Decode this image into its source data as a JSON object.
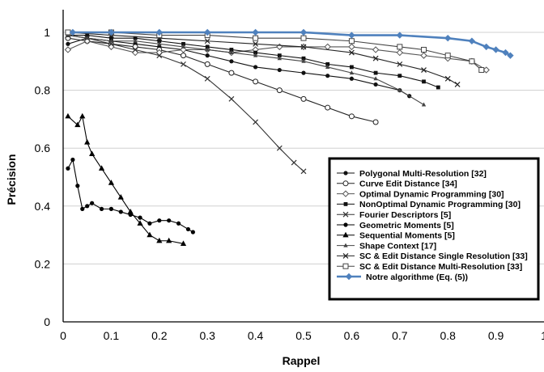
{
  "chart_data": {
    "type": "line",
    "xlabel": "Rappel",
    "ylabel": "Précision",
    "xlim": [
      0,
      1
    ],
    "ylim": [
      0,
      1
    ],
    "x_ticks": [
      0,
      0.1,
      0.2,
      0.3,
      0.4,
      0.5,
      0.6,
      0.7,
      0.8,
      0.9,
      1
    ],
    "x_tick_labels": [
      "0",
      "0.1",
      "0.2",
      "0.3",
      "0.4",
      "0.5",
      "0.6",
      "0.7",
      "0.8",
      "0.9",
      "1"
    ],
    "y_ticks": [
      0,
      0.2,
      0.4,
      0.6,
      0.8,
      1
    ],
    "y_tick_labels": [
      "0",
      "0.2",
      "0.4",
      "0.6",
      "0.8",
      "1"
    ],
    "grid": "horizontal",
    "legend_position": "lower-right",
    "series": [
      {
        "name": "Polygonal Multi-Resolution [32]",
        "marker": "dot",
        "color": "#111111",
        "x": [
          0.01,
          0.05,
          0.1,
          0.15,
          0.2,
          0.25,
          0.3,
          0.35,
          0.4,
          0.45,
          0.5,
          0.55,
          0.6,
          0.65,
          0.7,
          0.72
        ],
        "y": [
          0.96,
          0.98,
          0.97,
          0.96,
          0.95,
          0.94,
          0.92,
          0.9,
          0.88,
          0.87,
          0.86,
          0.85,
          0.84,
          0.82,
          0.8,
          0.78
        ]
      },
      {
        "name": "Curve Edit Distance [34]",
        "marker": "open-circle",
        "color": "#222222",
        "x": [
          0.01,
          0.05,
          0.1,
          0.15,
          0.2,
          0.25,
          0.3,
          0.35,
          0.4,
          0.45,
          0.5,
          0.55,
          0.6,
          0.65
        ],
        "y": [
          0.98,
          0.97,
          0.96,
          0.95,
          0.94,
          0.92,
          0.89,
          0.86,
          0.83,
          0.8,
          0.77,
          0.74,
          0.71,
          0.69
        ]
      },
      {
        "name": "Optimal Dynamic Programming [30]",
        "marker": "open-diamond",
        "color": "#555555",
        "x": [
          0.01,
          0.05,
          0.1,
          0.15,
          0.2,
          0.25,
          0.3,
          0.35,
          0.4,
          0.45,
          0.5,
          0.55,
          0.6,
          0.65,
          0.7,
          0.75,
          0.8,
          0.85,
          0.88
        ],
        "y": [
          0.94,
          0.97,
          0.95,
          0.93,
          0.93,
          0.94,
          0.94,
          0.93,
          0.94,
          0.95,
          0.95,
          0.95,
          0.95,
          0.94,
          0.93,
          0.92,
          0.91,
          0.9,
          0.87
        ]
      },
      {
        "name": "NonOptimal Dynamic Programming [30]",
        "marker": "square",
        "color": "#111111",
        "x": [
          0.01,
          0.05,
          0.1,
          0.15,
          0.2,
          0.25,
          0.3,
          0.35,
          0.4,
          0.45,
          0.5,
          0.55,
          0.6,
          0.65,
          0.7,
          0.75,
          0.78
        ],
        "y": [
          0.99,
          0.99,
          0.98,
          0.98,
          0.97,
          0.96,
          0.95,
          0.94,
          0.93,
          0.92,
          0.91,
          0.89,
          0.88,
          0.86,
          0.85,
          0.83,
          0.81
        ]
      },
      {
        "name": "Fourier Descriptors [5]",
        "marker": "x",
        "color": "#333333",
        "x": [
          0.01,
          0.05,
          0.1,
          0.15,
          0.2,
          0.25,
          0.3,
          0.35,
          0.4,
          0.45,
          0.48,
          0.5
        ],
        "y": [
          0.99,
          0.98,
          0.96,
          0.94,
          0.92,
          0.89,
          0.84,
          0.77,
          0.69,
          0.6,
          0.55,
          0.52
        ]
      },
      {
        "name": "Geometric Moments [5]",
        "marker": "dot",
        "color": "#000000",
        "x": [
          0.01,
          0.02,
          0.03,
          0.04,
          0.05,
          0.06,
          0.08,
          0.1,
          0.12,
          0.14,
          0.16,
          0.18,
          0.2,
          0.22,
          0.24,
          0.26,
          0.27
        ],
        "y": [
          0.53,
          0.56,
          0.47,
          0.39,
          0.4,
          0.41,
          0.39,
          0.39,
          0.38,
          0.37,
          0.36,
          0.34,
          0.35,
          0.35,
          0.34,
          0.32,
          0.31
        ]
      },
      {
        "name": "Sequential Moments [5]",
        "marker": "triangle",
        "color": "#000000",
        "x": [
          0.01,
          0.03,
          0.04,
          0.05,
          0.06,
          0.08,
          0.1,
          0.12,
          0.14,
          0.16,
          0.18,
          0.2,
          0.22,
          0.25
        ],
        "y": [
          0.71,
          0.68,
          0.71,
          0.62,
          0.58,
          0.53,
          0.48,
          0.43,
          0.38,
          0.34,
          0.3,
          0.28,
          0.28,
          0.27
        ]
      },
      {
        "name": "Shape Context [17]",
        "marker": "small-triangle",
        "color": "#444444",
        "x": [
          0.01,
          0.05,
          0.1,
          0.15,
          0.2,
          0.25,
          0.3,
          0.35,
          0.4,
          0.45,
          0.5,
          0.55,
          0.6,
          0.65,
          0.7,
          0.75
        ],
        "y": [
          0.99,
          0.98,
          0.97,
          0.97,
          0.96,
          0.95,
          0.94,
          0.93,
          0.92,
          0.91,
          0.9,
          0.88,
          0.86,
          0.84,
          0.8,
          0.75
        ]
      },
      {
        "name": "SC & Edit Distance Single Resolution [33]",
        "marker": "x",
        "color": "#222222",
        "x": [
          0.01,
          0.1,
          0.2,
          0.3,
          0.4,
          0.5,
          0.6,
          0.65,
          0.7,
          0.75,
          0.8,
          0.82
        ],
        "y": [
          1.0,
          0.99,
          0.98,
          0.97,
          0.96,
          0.95,
          0.93,
          0.91,
          0.89,
          0.87,
          0.84,
          0.82
        ]
      },
      {
        "name": "SC & Edit Distance Multi-Resolution [33]",
        "marker": "open-square",
        "color": "#444444",
        "x": [
          0.01,
          0.1,
          0.2,
          0.3,
          0.4,
          0.5,
          0.6,
          0.7,
          0.75,
          0.8,
          0.85,
          0.87
        ],
        "y": [
          1.0,
          1.0,
          0.99,
          0.99,
          0.98,
          0.98,
          0.97,
          0.95,
          0.94,
          0.92,
          0.9,
          0.87
        ]
      },
      {
        "name": "Notre algorithme (Eq. (5))",
        "marker": "blue-diamond",
        "color": "#4f81bd",
        "x": [
          0.02,
          0.1,
          0.2,
          0.3,
          0.4,
          0.5,
          0.6,
          0.7,
          0.8,
          0.85,
          0.88,
          0.9,
          0.92,
          0.93
        ],
        "y": [
          1.0,
          1.0,
          1.0,
          1.0,
          1.0,
          1.0,
          0.99,
          0.99,
          0.98,
          0.97,
          0.95,
          0.94,
          0.93,
          0.92
        ]
      }
    ]
  }
}
